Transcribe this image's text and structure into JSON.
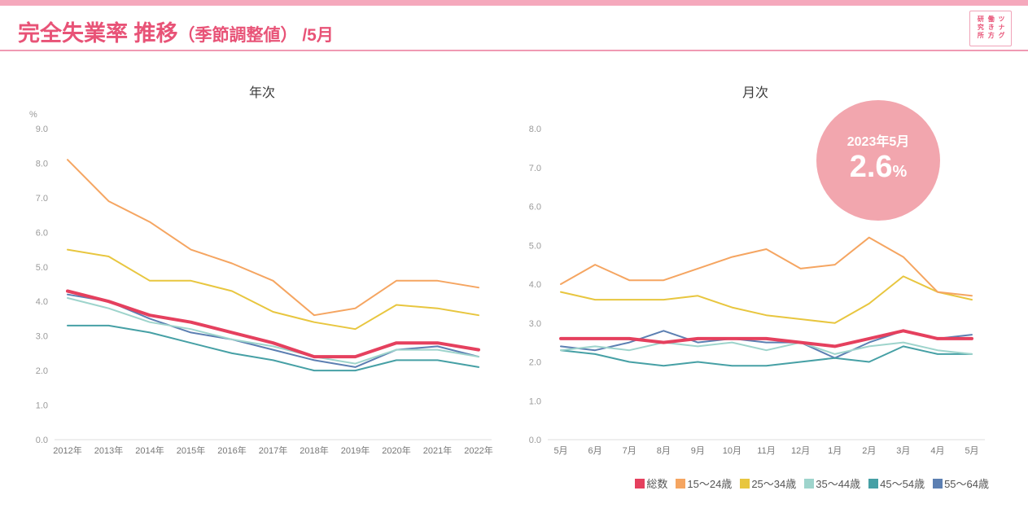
{
  "header": {
    "title_main": "完全失業率 推移",
    "title_paren": "（季節調整値）",
    "title_suffix": " /5月",
    "logo_lines": [
      "ツナグ",
      "働き方",
      "研究所"
    ],
    "accent_color": "#e85377"
  },
  "badge": {
    "line1": "2023年5月",
    "value": "2.6",
    "unit": "%",
    "color": "#f2a6ae"
  },
  "legend": [
    {
      "label": "総数",
      "color": "#e5405e"
    },
    {
      "label": "15〜24歳",
      "color": "#f5a561"
    },
    {
      "label": "25〜34歳",
      "color": "#e8c63f"
    },
    {
      "label": "35〜44歳",
      "color": "#9ed4cc"
    },
    {
      "label": "45〜54歳",
      "color": "#46a0a5"
    },
    {
      "label": "55〜64歳",
      "color": "#5c7fb2"
    }
  ],
  "chart_data": [
    {
      "type": "line",
      "title": "年次",
      "ylabel": "%",
      "ylim": [
        0,
        9
      ],
      "ytick_step": 1,
      "grid": false,
      "legend_position": "bottom-right",
      "categories": [
        "2012年",
        "2013年",
        "2014年",
        "2015年",
        "2016年",
        "2017年",
        "2018年",
        "2019年",
        "2020年",
        "2021年",
        "2022年"
      ],
      "series": [
        {
          "name": "総数",
          "color": "#e5405e",
          "width": 4,
          "values": [
            4.3,
            4.0,
            3.6,
            3.4,
            3.1,
            2.8,
            2.4,
            2.4,
            2.8,
            2.8,
            2.6
          ]
        },
        {
          "name": "15〜24歳",
          "color": "#f5a561",
          "width": 2,
          "values": [
            8.1,
            6.9,
            6.3,
            5.5,
            5.1,
            4.6,
            3.6,
            3.8,
            4.6,
            4.6,
            4.4
          ]
        },
        {
          "name": "25〜34歳",
          "color": "#e8c63f",
          "width": 2,
          "values": [
            5.5,
            5.3,
            4.6,
            4.6,
            4.3,
            3.7,
            3.4,
            3.2,
            3.9,
            3.8,
            3.6
          ]
        },
        {
          "name": "35〜44歳",
          "color": "#9ed4cc",
          "width": 2,
          "values": [
            4.1,
            3.8,
            3.4,
            3.2,
            2.9,
            2.7,
            2.4,
            2.2,
            2.6,
            2.6,
            2.4
          ]
        },
        {
          "name": "45〜54歳",
          "color": "#46a0a5",
          "width": 2,
          "values": [
            3.3,
            3.3,
            3.1,
            2.8,
            2.5,
            2.3,
            2.0,
            2.0,
            2.3,
            2.3,
            2.1
          ]
        },
        {
          "name": "55〜64歳",
          "color": "#5c7fb2",
          "width": 2,
          "values": [
            4.2,
            4.0,
            3.5,
            3.1,
            2.9,
            2.6,
            2.3,
            2.1,
            2.6,
            2.7,
            2.4
          ]
        }
      ]
    },
    {
      "type": "line",
      "title": "月次",
      "ylabel": "",
      "ylim": [
        0,
        8
      ],
      "ytick_step": 1,
      "grid": false,
      "legend_position": "bottom-right",
      "categories": [
        "5月",
        "6月",
        "7月",
        "8月",
        "9月",
        "10月",
        "11月",
        "12月",
        "1月",
        "2月",
        "3月",
        "4月",
        "5月"
      ],
      "series": [
        {
          "name": "総数",
          "color": "#e5405e",
          "width": 4,
          "values": [
            2.6,
            2.6,
            2.6,
            2.5,
            2.6,
            2.6,
            2.6,
            2.5,
            2.4,
            2.6,
            2.8,
            2.6,
            2.6
          ]
        },
        {
          "name": "15〜24歳",
          "color": "#f5a561",
          "width": 2,
          "values": [
            4.0,
            4.5,
            4.1,
            4.1,
            4.4,
            4.7,
            4.9,
            4.4,
            4.5,
            5.2,
            4.7,
            3.8,
            3.7
          ]
        },
        {
          "name": "25〜34歳",
          "color": "#e8c63f",
          "width": 2,
          "values": [
            3.8,
            3.6,
            3.6,
            3.6,
            3.7,
            3.4,
            3.2,
            3.1,
            3.0,
            3.5,
            4.2,
            3.8,
            3.6
          ]
        },
        {
          "name": "35〜44歳",
          "color": "#9ed4cc",
          "width": 2,
          "values": [
            2.3,
            2.4,
            2.3,
            2.5,
            2.4,
            2.5,
            2.3,
            2.5,
            2.2,
            2.4,
            2.5,
            2.3,
            2.2
          ]
        },
        {
          "name": "45〜54歳",
          "color": "#46a0a5",
          "width": 2,
          "values": [
            2.3,
            2.2,
            2.0,
            1.9,
            2.0,
            1.9,
            1.9,
            2.0,
            2.1,
            2.0,
            2.4,
            2.2,
            2.2
          ]
        },
        {
          "name": "55〜64歳",
          "color": "#5c7fb2",
          "width": 2,
          "values": [
            2.4,
            2.3,
            2.5,
            2.8,
            2.5,
            2.6,
            2.5,
            2.5,
            2.1,
            2.5,
            2.8,
            2.6,
            2.7
          ]
        }
      ]
    }
  ]
}
